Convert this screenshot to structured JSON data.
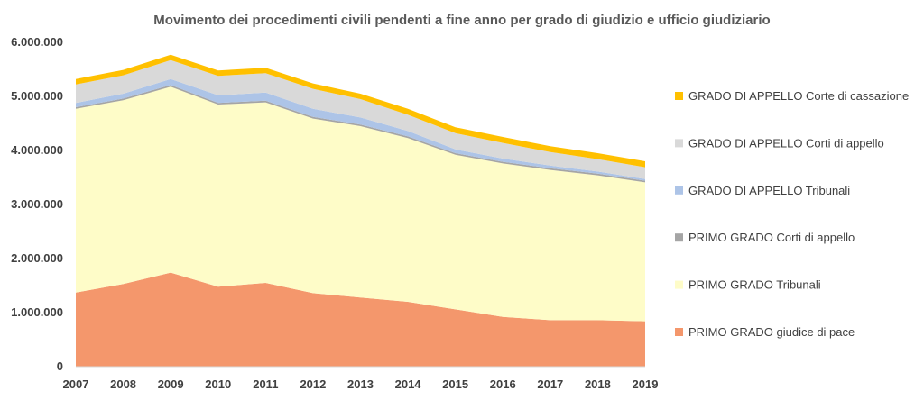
{
  "chart_data": {
    "type": "area",
    "stacked": true,
    "title": "Movimento dei procedimenti civili pendenti a fine anno per grado di giudizio e ufficio giudiziario",
    "xlabel": "",
    "ylabel": "",
    "ylim": [
      0,
      6000000
    ],
    "grid": false,
    "legend_position": "right",
    "categories": [
      "2007",
      "2008",
      "2009",
      "2010",
      "2011",
      "2012",
      "2013",
      "2014",
      "2015",
      "2016",
      "2017",
      "2018",
      "2019"
    ],
    "y_ticks": [
      "0",
      "1.000.000",
      "2.000.000",
      "3.000.000",
      "4.000.000",
      "5.000.000",
      "6.000.000"
    ],
    "series": [
      {
        "name": "PRIMO GRADO giudice di pace",
        "color": "#f4976c",
        "values": [
          1370000,
          1530000,
          1740000,
          1480000,
          1550000,
          1360000,
          1280000,
          1200000,
          1060000,
          920000,
          860000,
          860000,
          840000
        ]
      },
      {
        "name": "PRIMO GRADO Tribunali",
        "color": "#fefcc8",
        "values": [
          3400000,
          3400000,
          3440000,
          3370000,
          3340000,
          3230000,
          3170000,
          3030000,
          2860000,
          2840000,
          2780000,
          2680000,
          2570000
        ]
      },
      {
        "name": "PRIMO GRADO Corti di appello",
        "color": "#a5a5a5",
        "values": [
          30000,
          30000,
          30000,
          30000,
          30000,
          30000,
          30000,
          30000,
          30000,
          30000,
          30000,
          30000,
          30000
        ]
      },
      {
        "name": "GRADO DI APPELLO Tribunali",
        "color": "#adc4e7",
        "values": [
          80000,
          90000,
          110000,
          140000,
          150000,
          150000,
          130000,
          100000,
          70000,
          60000,
          50000,
          40000,
          30000
        ]
      },
      {
        "name": "GRADO DI APPELLO Corti di appello",
        "color": "#d9d9d9",
        "values": [
          340000,
          340000,
          350000,
          360000,
          360000,
          370000,
          340000,
          300000,
          300000,
          290000,
          250000,
          230000,
          220000
        ]
      },
      {
        "name": "GRADO DI APPELLO Corte di cassazione",
        "color": "#ffc000",
        "values": [
          100000,
          100000,
          100000,
          100000,
          100000,
          100000,
          100000,
          110000,
          110000,
          110000,
          110000,
          110000,
          110000
        ]
      }
    ]
  }
}
